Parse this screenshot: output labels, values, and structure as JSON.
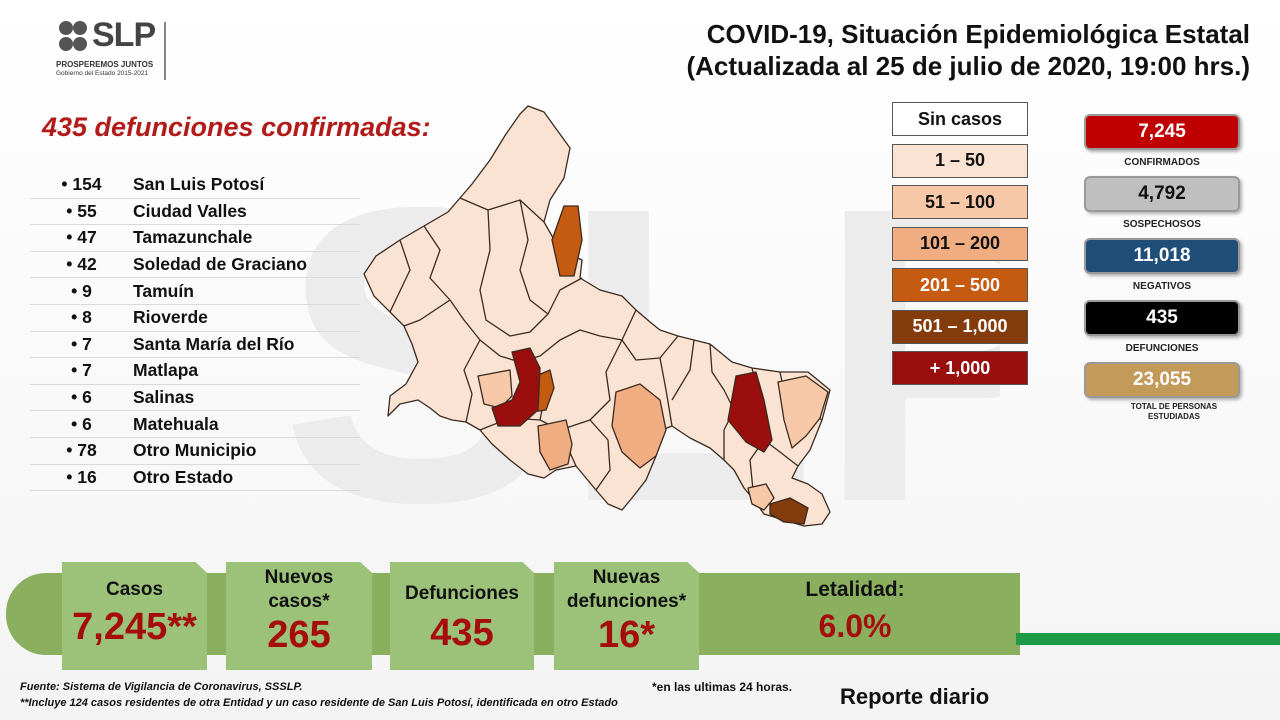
{
  "logo": {
    "title": "SLP",
    "subtitle1": "PROSPEREMOS JUNTOS",
    "subtitle2": "Gobierno del Estado 2015-2021"
  },
  "header": {
    "title_line1": "COVID-19, Situación Epidemiológica Estatal",
    "title_line2": "(Actualizada al 25 de julio de 2020, 19:00 hrs.)"
  },
  "deaths_title": "435 defunciones confirmadas:",
  "municipalities": [
    {
      "num": "• 154",
      "name": "San Luis Potosí"
    },
    {
      "num": "• 55",
      "name": "Ciudad Valles"
    },
    {
      "num": "• 47",
      "name": "Tamazunchale"
    },
    {
      "num": "• 42",
      "name": "Soledad de Graciano"
    },
    {
      "num": "• 9",
      "name": "Tamuín"
    },
    {
      "num": "• 8",
      "name": "Rioverde"
    },
    {
      "num": "• 7",
      "name": "Santa María del Río"
    },
    {
      "num": "• 7",
      "name": "Matlapa"
    },
    {
      "num": "• 6",
      "name": "Salinas"
    },
    {
      "num": "• 6",
      "name": "Matehuala"
    },
    {
      "num": "• 78",
      "name": "Otro Municipio"
    },
    {
      "num": "• 16",
      "name": "Otro Estado"
    }
  ],
  "legend": [
    {
      "label": "Sin casos",
      "color": "#ffffff",
      "text_color": "#111111"
    },
    {
      "label": "1 – 50",
      "color": "#fbe3d3",
      "text_color": "#111111"
    },
    {
      "label": "51 – 100",
      "color": "#f8c9a8",
      "text_color": "#111111"
    },
    {
      "label": "101 – 200",
      "color": "#f0ad82",
      "text_color": "#111111"
    },
    {
      "label": "201 – 500",
      "color": "#c55a11",
      "text_color": "#ffffff"
    },
    {
      "label": "501 – 1,000",
      "color": "#843c0c",
      "text_color": "#ffffff"
    },
    {
      "label": "+ 1,000",
      "color": "#9b0e0e",
      "text_color": "#ffffff"
    }
  ],
  "stats": [
    {
      "value": "7,245",
      "label": "CONFIRMADOS",
      "color": "#c00000",
      "text_color": "#ffffff"
    },
    {
      "value": "4,792",
      "label": "SOSPECHOSOS",
      "color": "#bfbfbf",
      "text_color": "#111111"
    },
    {
      "value": "11,018",
      "label": "NEGATIVOS",
      "color": "#1f4e79",
      "text_color": "#ffffff"
    },
    {
      "value": "435",
      "label": "DEFUNCIONES",
      "color": "#000000",
      "text_color": "#ffffff"
    },
    {
      "value": "23,055",
      "label": "TOTAL DE PERSONAS ESTUDIADAS",
      "color": "#c49a5a",
      "text_color": "#ffffff"
    }
  ],
  "cards": {
    "casos": {
      "label": "Casos",
      "value": "7,245**"
    },
    "nuevos_casos": {
      "label": "Nuevos casos*",
      "value": "265"
    },
    "defunciones": {
      "label": "Defunciones",
      "value": "435"
    },
    "nuevas_defunciones": {
      "label": "Nuevas defunciones*",
      "value": "16*"
    },
    "letalidad": {
      "label": "Letalidad:",
      "value": "6.0%"
    }
  },
  "footer": {
    "source": "Fuente: Sistema de Vigilancia de Coronavirus, SSSLP.",
    "note": "**Incluye 124 casos residentes de otra Entidad y un caso residente de San Luis Potosí, identificada en otro Estado",
    "note24": "*en las ultimas 24 horas.",
    "report": "Reporte diario"
  }
}
